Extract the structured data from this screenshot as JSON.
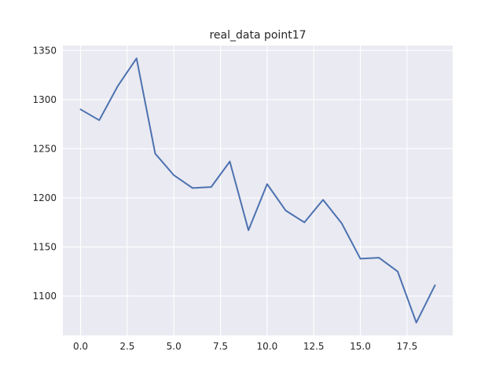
{
  "chart_data": {
    "type": "line",
    "title": "real_data point17",
    "xlabel": "",
    "ylabel": "",
    "xlim": [
      -0.95,
      19.95
    ],
    "ylim": [
      1060,
      1355
    ],
    "xticks": [
      0.0,
      2.5,
      5.0,
      7.5,
      10.0,
      12.5,
      15.0,
      17.5
    ],
    "xtick_labels": [
      "0.0",
      "2.5",
      "5.0",
      "7.5",
      "10.0",
      "12.5",
      "15.0",
      "17.5"
    ],
    "yticks": [
      1100,
      1150,
      1200,
      1250,
      1300,
      1350
    ],
    "ytick_labels": [
      "1100",
      "1150",
      "1200",
      "1250",
      "1300",
      "1350"
    ],
    "grid": true,
    "legend": "none",
    "series": [
      {
        "color": "#4c72b0",
        "x": [
          0,
          1,
          2,
          3,
          4,
          5,
          6,
          7,
          8,
          9,
          10,
          11,
          12,
          13,
          14,
          15,
          16,
          17,
          18,
          19
        ],
        "y": [
          1290,
          1279,
          1314,
          1342,
          1245,
          1223,
          1210,
          1211,
          1237,
          1167,
          1214,
          1187,
          1175,
          1198,
          1174,
          1138,
          1139,
          1125,
          1073,
          1111
        ]
      }
    ],
    "colors": {
      "plot_background": "#eaeaf2",
      "grid": "#ffffff",
      "line": "#4c72b0",
      "text": "#262626"
    }
  }
}
